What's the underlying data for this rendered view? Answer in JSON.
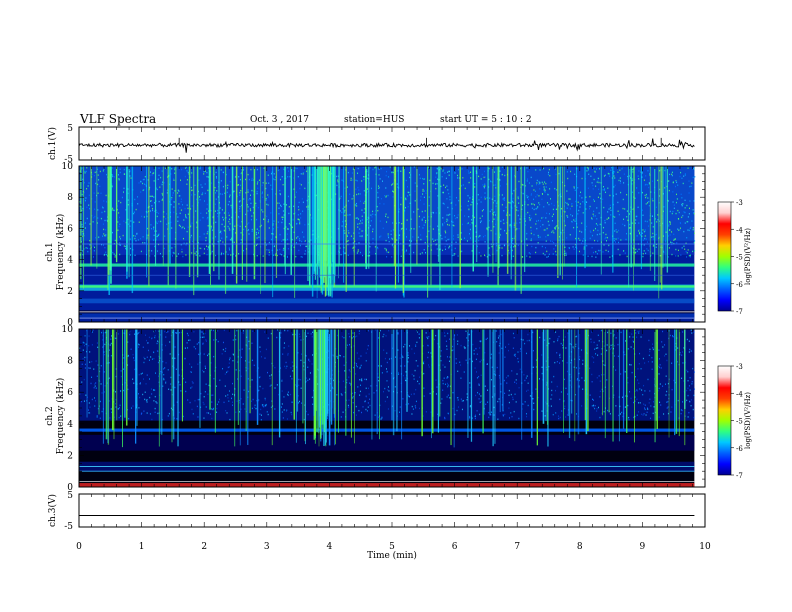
{
  "header": {
    "title": "VLF Spectra",
    "date": "Oct. 3 , 2017",
    "station": "station=HUS",
    "start_ut": "start UT = 5 : 10 : 2"
  },
  "colorbar": {
    "label": "log(PSD)(V²/Hz)",
    "ticks": [
      "-3",
      "-4",
      "-5",
      "-6",
      "-7"
    ],
    "colors": [
      "#000090",
      "#0000ff",
      "#0060ff",
      "#00c8ff",
      "#30ff80",
      "#a0ff00",
      "#ffd000",
      "#ff4000",
      "#ff0000",
      "#ffd0d0",
      "#ffffff"
    ]
  },
  "chart_data": [
    {
      "type": "line",
      "ylabel": "ch.1(V)",
      "yticks": [
        "5",
        "-5"
      ],
      "ylim": [
        -5,
        5
      ],
      "mean_level": -0.5
    },
    {
      "type": "heatmap",
      "ylabel": "ch.1",
      "ylabel2": "Frequency (kHz)",
      "yticks": [
        "0",
        "2",
        "4",
        "6",
        "8",
        "10"
      ],
      "ylim": [
        0,
        10
      ]
    },
    {
      "type": "heatmap",
      "ylabel": "ch.2",
      "ylabel2": "Frequency (kHz)",
      "yticks": [
        "0",
        "2",
        "4",
        "6",
        "8",
        "10"
      ],
      "ylim": [
        0,
        10
      ]
    },
    {
      "type": "line",
      "ylabel": "ch.3(V)",
      "yticks": [
        "5",
        "-5"
      ],
      "ylim": [
        -5,
        5
      ],
      "mean_level": -1.5
    }
  ],
  "xaxis": {
    "label": "Time (min)",
    "ticks": [
      "0",
      "1",
      "2",
      "3",
      "4",
      "5",
      "6",
      "7",
      "8",
      "9",
      "10"
    ],
    "range": [
      0,
      10
    ],
    "data_end": 9.83
  }
}
